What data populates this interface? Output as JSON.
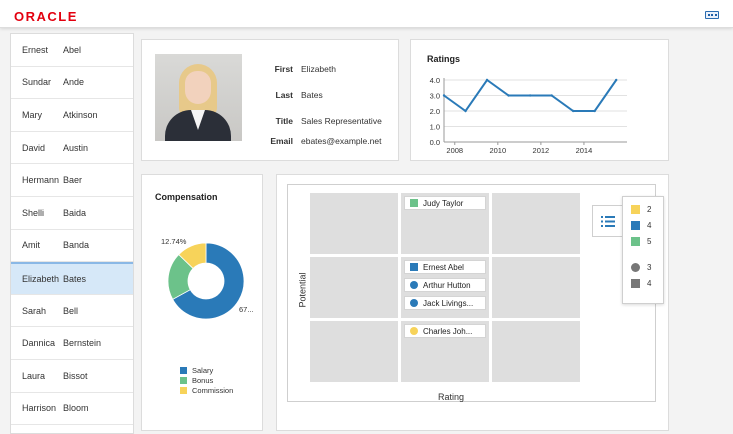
{
  "header": {
    "logo_text": "ORACLE"
  },
  "employees": [
    {
      "first": "Ernest",
      "last": "Abel"
    },
    {
      "first": "Sundar",
      "last": "Ande"
    },
    {
      "first": "Mary",
      "last": "Atkinson"
    },
    {
      "first": "David",
      "last": "Austin"
    },
    {
      "first": "Hermann",
      "last": "Baer"
    },
    {
      "first": "Shelli",
      "last": "Baida"
    },
    {
      "first": "Amit",
      "last": "Banda"
    },
    {
      "first": "Elizabeth",
      "last": "Bates"
    },
    {
      "first": "Sarah",
      "last": "Bell"
    },
    {
      "first": "Dannica",
      "last": "Bernstein"
    },
    {
      "first": "Laura",
      "last": "Bissot"
    },
    {
      "first": "Harrison",
      "last": "Bloom"
    }
  ],
  "selected_index": 7,
  "profile": {
    "first_label": "First",
    "first_value": "Elizabeth",
    "last_label": "Last",
    "last_value": "Bates",
    "title_label": "Title",
    "title_value": "Sales Representative",
    "email_label": "Email",
    "email_value": "ebates@example.net"
  },
  "ratings": {
    "title": "Ratings",
    "chart_data": {
      "type": "line",
      "x": [
        2007.5,
        2008.5,
        2009.5,
        2010.5,
        2011.5,
        2012.5,
        2013.5,
        2014.5,
        2015.5
      ],
      "values": [
        3.0,
        2.0,
        4.0,
        3.0,
        3.0,
        3.0,
        2.0,
        2.0,
        4.0
      ],
      "ylim": [
        0,
        4.0
      ],
      "xlim": [
        2007.5,
        2016
      ],
      "y_ticks": [
        "0.0",
        "1.0",
        "2.0",
        "3.0",
        "4.0"
      ],
      "x_ticks": [
        "2008",
        "2010",
        "2012",
        "2014"
      ],
      "color": "#2a7ab8",
      "grid": true
    }
  },
  "compensation": {
    "title": "Compensation",
    "chart_data": {
      "type": "pie",
      "categories": [
        "Salary",
        "Bonus",
        "Commission"
      ],
      "values": [
        67.0,
        20.26,
        12.74
      ],
      "colors": [
        "#2a7ab8",
        "#6cc28a",
        "#f7d35a"
      ],
      "label_commission": "12.74%",
      "label_salary": "67..."
    }
  },
  "matrix": {
    "x_label": "Rating",
    "y_label": "Potential",
    "chips": [
      {
        "name": "Judy Taylor",
        "color": "#6cc28a",
        "shape": "square"
      },
      {
        "name": "Ernest Abel",
        "color": "#2a7ab8",
        "shape": "square"
      },
      {
        "name": "Arthur Hutton",
        "color": "#2a7ab8",
        "shape": "circle"
      },
      {
        "name": "Jack Livings...",
        "color": "#2a7ab8",
        "shape": "circle"
      },
      {
        "name": "Charles Joh...",
        "color": "#f7d35a",
        "shape": "circle"
      }
    ],
    "legend": [
      {
        "label": "2",
        "color": "#f7d35a",
        "shape": "square"
      },
      {
        "label": "4",
        "color": "#2a7ab8",
        "shape": "square"
      },
      {
        "label": "5",
        "color": "#6cc28a",
        "shape": "square"
      },
      {
        "label": "3",
        "color": "#777777",
        "shape": "circle"
      },
      {
        "label": "4",
        "color": "#777777",
        "shape": "square"
      }
    ],
    "legend_icon": "list-icon"
  }
}
